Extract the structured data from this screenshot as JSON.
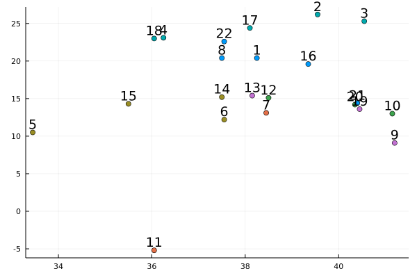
{
  "chart_data": {
    "type": "scatter",
    "xlim": [
      33.3,
      41.5
    ],
    "ylim": [
      -6.2,
      27.2
    ],
    "x_ticks": [
      34,
      36,
      38,
      40
    ],
    "y_ticks": [
      -5,
      0,
      5,
      10,
      15,
      20,
      25
    ],
    "grid": true,
    "legend": "none",
    "points": [
      {
        "label": "1",
        "x": 38.25,
        "y": 20.4,
        "color": "#009AFA"
      },
      {
        "label": "2",
        "x": 39.55,
        "y": 26.2,
        "color": "#00A9AD"
      },
      {
        "label": "3",
        "x": 40.55,
        "y": 25.3,
        "color": "#00A9AD"
      },
      {
        "label": "4",
        "x": 36.25,
        "y": 23.1,
        "color": "#00A9AD"
      },
      {
        "label": "5",
        "x": 33.45,
        "y": 10.5,
        "color": "#9A8E24"
      },
      {
        "label": "6",
        "x": 37.55,
        "y": 12.2,
        "color": "#9A8E24"
      },
      {
        "label": "7",
        "x": 38.45,
        "y": 13.1,
        "color": "#E36F47"
      },
      {
        "label": "8",
        "x": 37.5,
        "y": 20.4,
        "color": "#009AFA"
      },
      {
        "label": "9",
        "x": 41.2,
        "y": 9.1,
        "color": "#C271D2"
      },
      {
        "label": "10",
        "x": 41.15,
        "y": 13.0,
        "color": "#3EA44E"
      },
      {
        "label": "11",
        "x": 36.05,
        "y": -5.2,
        "color": "#E36F47"
      },
      {
        "label": "12",
        "x": 38.5,
        "y": 15.1,
        "color": "#3EA44E"
      },
      {
        "label": "13",
        "x": 38.15,
        "y": 15.4,
        "color": "#C271D2"
      },
      {
        "label": "14",
        "x": 37.5,
        "y": 15.2,
        "color": "#9A8E24"
      },
      {
        "label": "15",
        "x": 35.5,
        "y": 14.3,
        "color": "#9A8E24"
      },
      {
        "label": "16",
        "x": 39.35,
        "y": 19.6,
        "color": "#009AFA"
      },
      {
        "label": "17",
        "x": 38.1,
        "y": 24.4,
        "color": "#00A9AD"
      },
      {
        "label": "18",
        "x": 36.05,
        "y": 23.0,
        "color": "#00A9AD"
      },
      {
        "label": "19",
        "x": 40.45,
        "y": 13.6,
        "color": "#C271D2"
      },
      {
        "label": "20",
        "x": 40.35,
        "y": 14.2,
        "color": "#3EA44E"
      },
      {
        "label": "21",
        "x": 40.4,
        "y": 14.4,
        "color": "#009AFA"
      },
      {
        "label": "22",
        "x": 37.55,
        "y": 22.6,
        "color": "#009AFA"
      }
    ]
  }
}
